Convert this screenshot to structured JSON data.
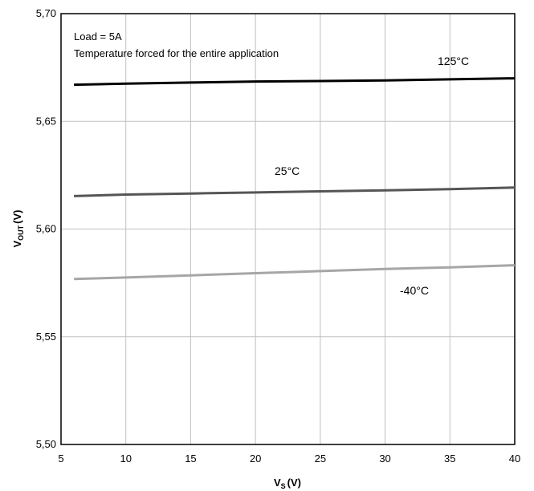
{
  "chart_data": {
    "type": "line",
    "xlim": [
      5,
      40
    ],
    "ylim": [
      5.5,
      5.7
    ],
    "x_ticks": [
      "5",
      "10",
      "15",
      "20",
      "25",
      "30",
      "35",
      "40"
    ],
    "y_ticks": [
      "5,50",
      "5,55",
      "5,60",
      "5,65",
      "5,70"
    ],
    "x_tick_values": [
      5,
      10,
      15,
      20,
      25,
      30,
      35,
      40
    ],
    "y_tick_values": [
      5.5,
      5.55,
      5.6,
      5.65,
      5.7
    ],
    "xlabel": {
      "main": "V",
      "sub": "S",
      "unit": "(V)"
    },
    "ylabel": {
      "main": "V",
      "sub": "OUT",
      "unit": "(V)"
    },
    "annotations": [
      "Load = 5A",
      "Temperature forced for the entire application"
    ],
    "grid": true,
    "series": [
      {
        "name": "125°C",
        "color": "#000000",
        "x": [
          6,
          10,
          15,
          20,
          25,
          30,
          35,
          40
        ],
        "y": [
          5.667,
          5.6675,
          5.668,
          5.6685,
          5.6687,
          5.669,
          5.6695,
          5.67
        ]
      },
      {
        "name": "25°C",
        "color": "#555555",
        "x": [
          6,
          10,
          15,
          20,
          25,
          30,
          35,
          40
        ],
        "y": [
          5.6153,
          5.616,
          5.6165,
          5.617,
          5.6175,
          5.618,
          5.6185,
          5.6193
        ]
      },
      {
        "name": "-40°C",
        "color": "#a6a6a6",
        "x": [
          6,
          10,
          15,
          20,
          25,
          30,
          35,
          40
        ],
        "y": [
          5.5768,
          5.5775,
          5.5785,
          5.5795,
          5.5805,
          5.5815,
          5.5822,
          5.5832
        ]
      }
    ]
  }
}
